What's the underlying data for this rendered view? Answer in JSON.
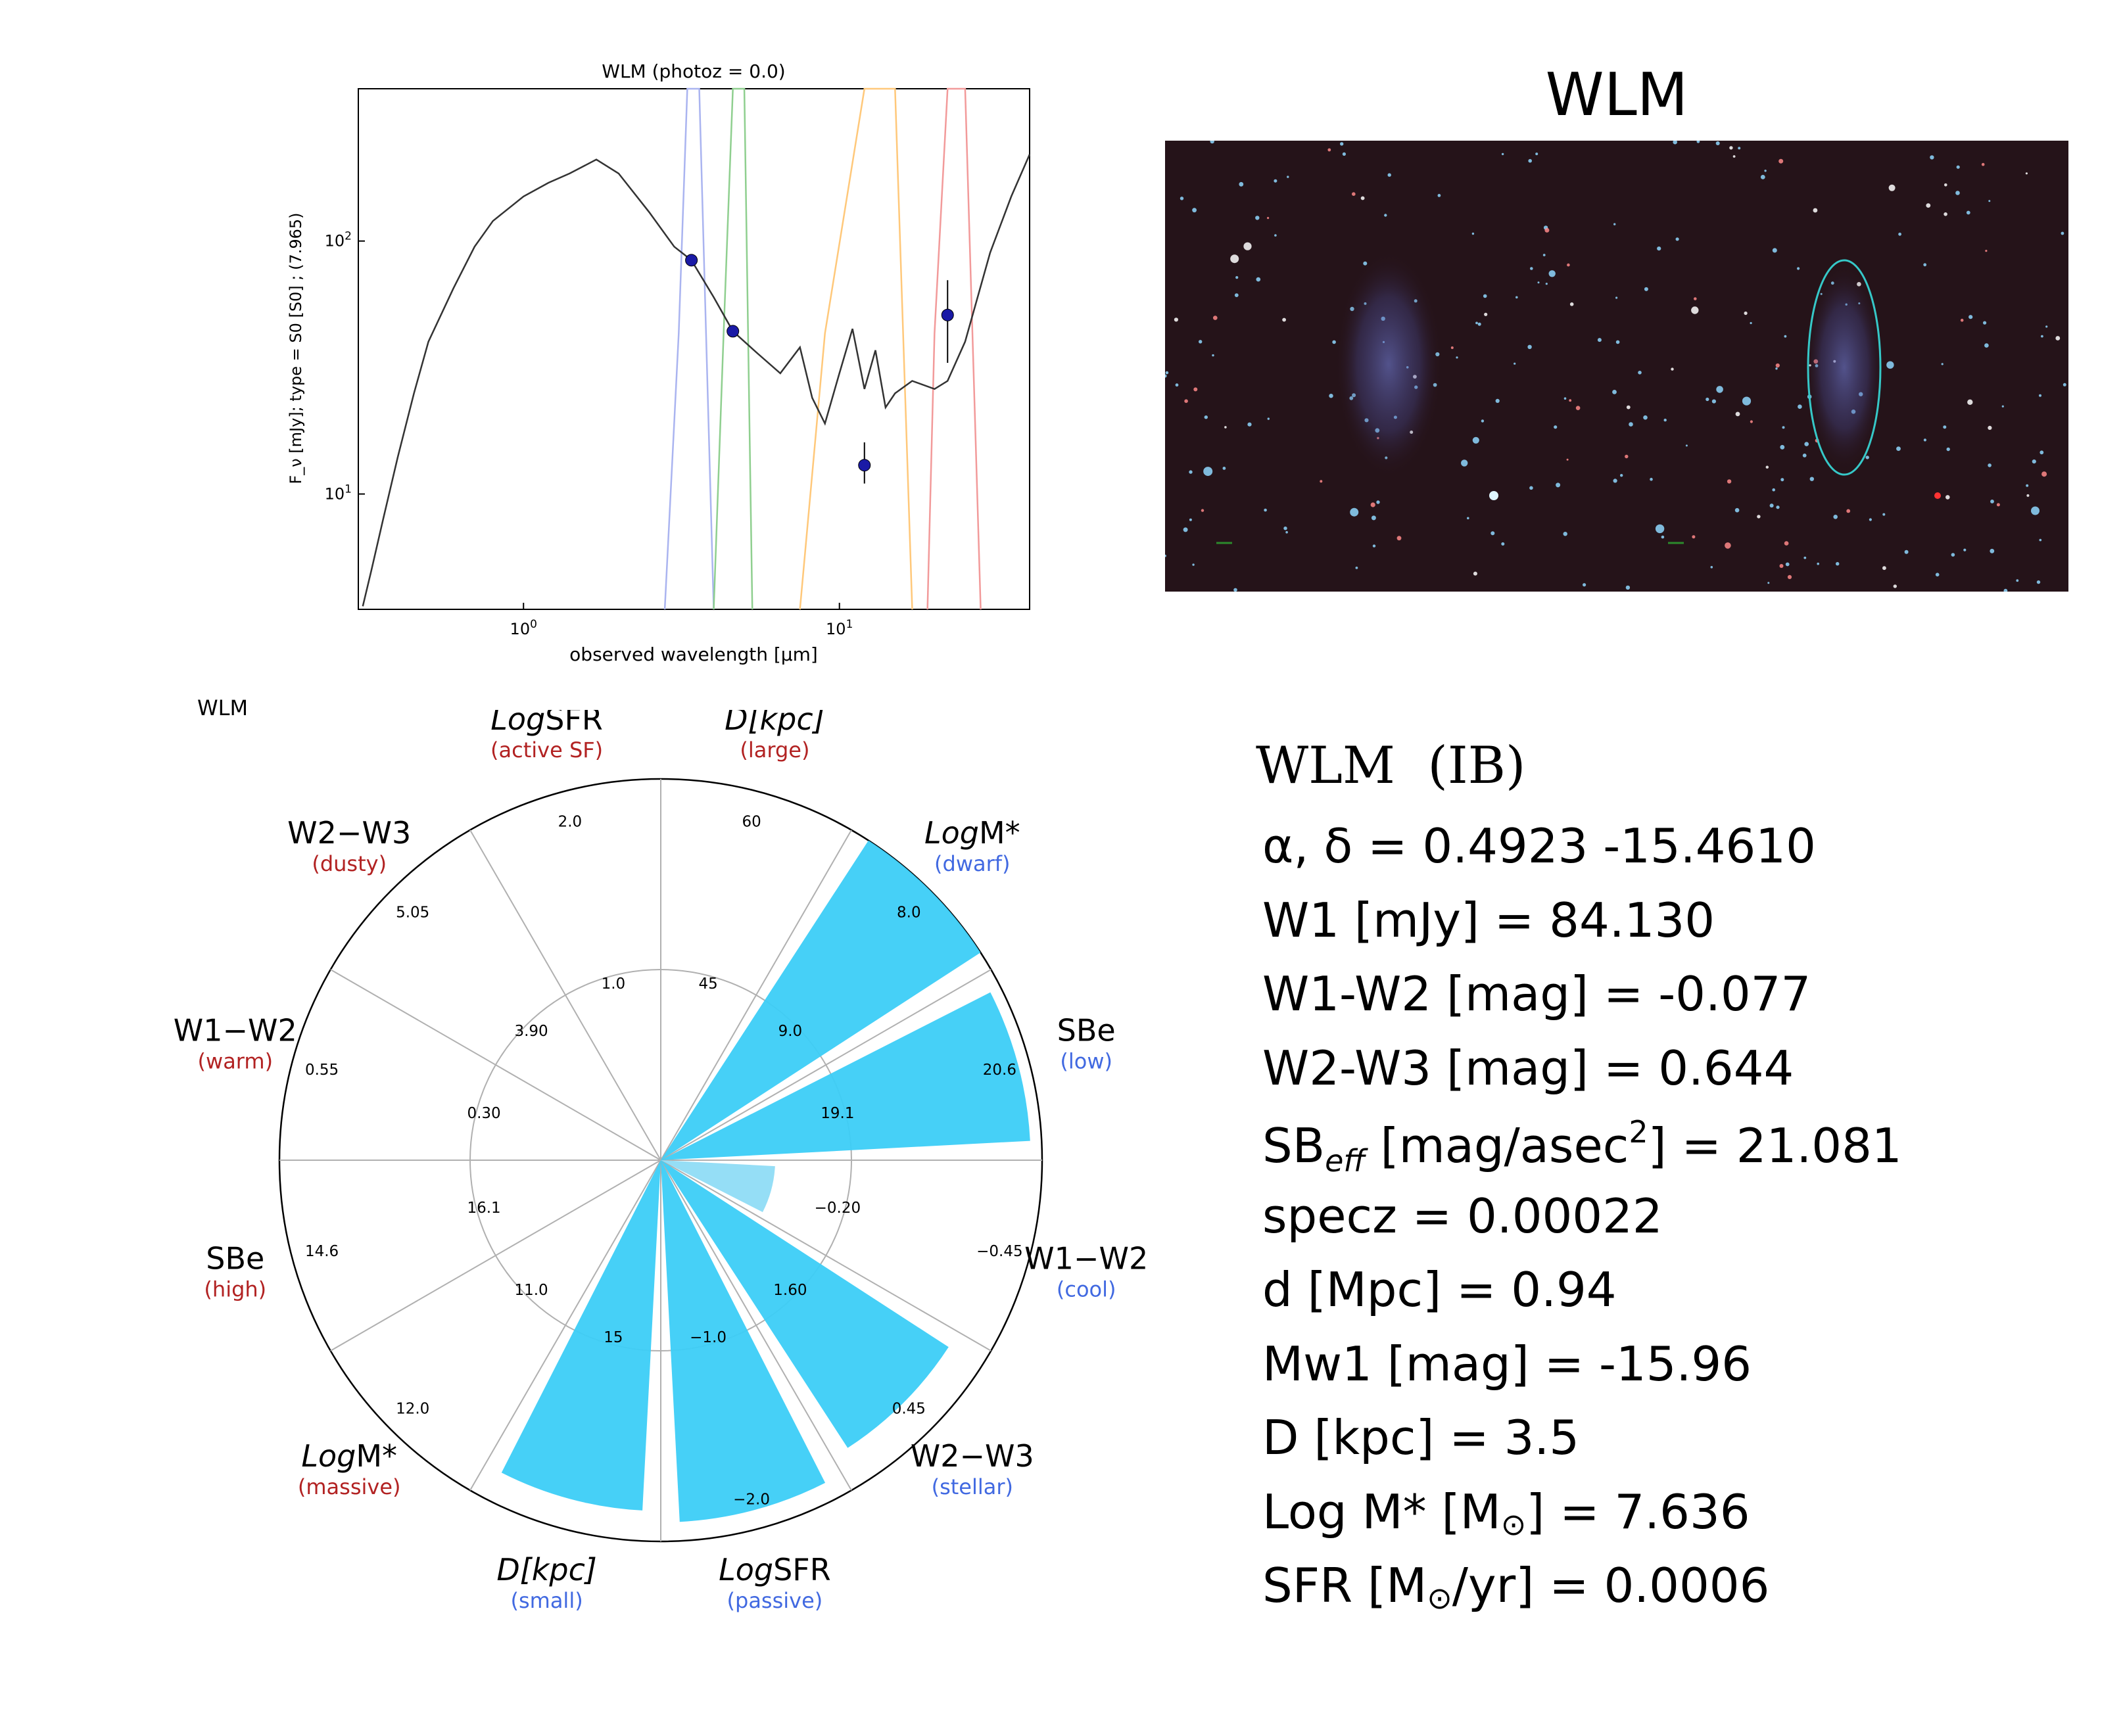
{
  "sed_chart": {
    "title": "WLM (photoz = 0.0)",
    "ylabel": "F_ν [mJy];  type = S0 [S0] ; (7.965)",
    "xlabel": "observed wavelength [μm]",
    "xscale": "log",
    "yscale": "log",
    "xlim": [
      0.3,
      40
    ],
    "ylim": [
      3.5,
      400
    ],
    "xticks": [
      {
        "v": 1,
        "label": "10^0"
      },
      {
        "v": 10,
        "label": "10^1"
      }
    ],
    "yticks": [
      {
        "v": 10,
        "label": "10^1"
      },
      {
        "v": 100,
        "label": "10^2"
      }
    ]
  },
  "image_panel": {
    "title": "WLM"
  },
  "radar": {
    "label": "WLM",
    "axes": [
      {
        "name": "W1−W2",
        "sub": "(warm)",
        "subcolor": "#b22222"
      },
      {
        "name": "W2−W3",
        "sub": "(dusty)",
        "subcolor": "#b22222"
      },
      {
        "name": "LogSFR",
        "sub": "(active SF)",
        "subcolor": "#b22222"
      },
      {
        "name": "D[kpc]",
        "sub": "(large)",
        "subcolor": "#b22222"
      },
      {
        "name": "LogM*",
        "sub": "(dwarf)",
        "subcolor": "#4169e1"
      },
      {
        "name": "SBe",
        "sub": "(low)",
        "subcolor": "#4169e1"
      },
      {
        "name": "W1−W2",
        "sub": "(cool)",
        "subcolor": "#4169e1"
      },
      {
        "name": "W2−W3",
        "sub": "(stellar)",
        "subcolor": "#4169e1"
      },
      {
        "name": "LogSFR",
        "sub": "(passive)",
        "subcolor": "#4169e1"
      },
      {
        "name": "D[kpc]",
        "sub": "(small)",
        "subcolor": "#4169e1"
      },
      {
        "name": "LogM*",
        "sub": "(massive)",
        "subcolor": "#b22222"
      },
      {
        "name": "SBe",
        "sub": "(high)",
        "subcolor": "#b22222"
      }
    ],
    "tick_labels": [
      {
        "text": "0.55"
      },
      {
        "text": "5.05"
      },
      {
        "text": "2.0"
      },
      {
        "text": "60"
      },
      {
        "text": "0.30"
      },
      {
        "text": "3.90"
      },
      {
        "text": "1.0"
      },
      {
        "text": "45"
      },
      {
        "text": "16.1"
      },
      {
        "text": "11.0"
      },
      {
        "text": "12.0"
      },
      {
        "text": "14.6"
      },
      {
        "text": "9.0"
      },
      {
        "text": "8.0"
      },
      {
        "text": "19.1"
      },
      {
        "text": "20.6"
      },
      {
        "text": "−0.20"
      },
      {
        "text": "−0.45"
      },
      {
        "text": "1.60"
      },
      {
        "text": "0.45"
      },
      {
        "text": "−1.0"
      },
      {
        "text": "−2.0"
      },
      {
        "text": "15"
      }
    ]
  },
  "chart_data": [
    {
      "type": "line",
      "title": "WLM (photoz = 0.0)",
      "xlabel": "observed wavelength [μm]",
      "ylabel": "F_ν [mJy];  type = S0 [S0] ; (7.965)",
      "xlim": [
        0.3,
        40
      ],
      "ylim": [
        3.5,
        400
      ],
      "series": [
        {
          "values": [
            [
              0.31,
              3.6
            ],
            [
              0.33,
              5
            ],
            [
              0.36,
              8
            ],
            [
              0.4,
              14
            ],
            [
              0.45,
              25
            ],
            [
              0.5,
              40
            ],
            [
              0.6,
              65
            ],
            [
              0.7,
              95
            ],
            [
              0.8,
              120
            ],
            [
              1.0,
              150
            ],
            [
              1.2,
              170
            ],
            [
              1.4,
              185
            ],
            [
              1.7,
              210
            ],
            [
              2.0,
              185
            ],
            [
              2.5,
              130
            ],
            [
              3.0,
              95
            ],
            [
              3.4,
              84
            ],
            [
              4.0,
              60
            ],
            [
              4.6,
              44
            ],
            [
              5.5,
              36
            ],
            [
              6.5,
              30
            ],
            [
              7.5,
              38
            ],
            [
              8.2,
              24
            ],
            [
              9,
              19
            ],
            [
              10,
              30
            ],
            [
              11,
              45
            ],
            [
              12,
              26
            ],
            [
              13,
              37
            ],
            [
              14,
              22
            ],
            [
              15,
              25
            ],
            [
              17,
              28
            ],
            [
              20,
              26
            ],
            [
              22,
              28
            ],
            [
              25,
              40
            ],
            [
              30,
              90
            ],
            [
              35,
              150
            ],
            [
              40,
              220
            ]
          ]
        }
      ],
      "points": [
        {
          "x": 3.4,
          "y": 84,
          "yerr_lo": 80,
          "yerr_hi": 88
        },
        {
          "x": 4.6,
          "y": 44,
          "yerr_lo": 42,
          "yerr_hi": 46
        },
        {
          "x": 12,
          "y": 13,
          "yerr_lo": 11,
          "yerr_hi": 16
        },
        {
          "x": 22,
          "y": 51,
          "yerr_lo": 33,
          "yerr_hi": 70
        }
      ],
      "filter_curves": [
        {
          "color": "#aab4f0",
          "band": "W1",
          "x": [
            2.8,
            3.1,
            3.3,
            3.6,
            3.9,
            4.0
          ]
        },
        {
          "color": "#8fcf8f",
          "band": "W2",
          "x": [
            4.0,
            4.3,
            4.6,
            5.0,
            5.3
          ]
        },
        {
          "color": "#ffc87a",
          "band": "W3",
          "x": [
            7.5,
            9,
            12,
            15,
            17
          ]
        },
        {
          "color": "#f29a9a",
          "band": "W4",
          "x": [
            19,
            20,
            22,
            25,
            28
          ]
        }
      ]
    },
    {
      "type": "bar",
      "polar": true,
      "categories": [
        "W1−W2 (warm)",
        "W2−W3 (dusty)",
        "LogSFR (active SF)",
        "D[kpc] (large)",
        "LogM* (dwarf)",
        "SBe (low)",
        "W1−W2 (cool)",
        "W2−W3 (stellar)",
        "LogSFR (passive)",
        "D[kpc] (small)",
        "LogM* (massive)",
        "SBe (high)"
      ],
      "values": [
        0,
        0,
        0,
        0,
        1.0,
        0.97,
        0.3,
        0.9,
        0.95,
        0.92,
        0,
        0
      ],
      "rlim": [
        0,
        1
      ],
      "grid_ring": 0.5
    }
  ],
  "info": {
    "title": "WLM  (IB)",
    "lines": [
      {
        "pre": "α, δ = 0.4923 -15.4610"
      },
      {
        "pre": "W1 [mJy] = 84.130"
      },
      {
        "pre": "W1-W2 [mag] = -0.077"
      },
      {
        "pre": "W2-W3 [mag] = 0.644"
      },
      {
        "pre": "SB",
        "sub": "eff",
        "mid": " [mag/asec",
        "sup": "2",
        "post": "] = 21.081"
      },
      {
        "pre": "specz = 0.00022"
      },
      {
        "pre": "d [Mpc] = 0.94"
      },
      {
        "pre": "Mw1 [mag] = -15.96"
      },
      {
        "pre": "D [kpc] = 3.5"
      },
      {
        "pre": "Log M* [M",
        "sym": "⊙",
        "post": "] = 7.636"
      },
      {
        "pre": "SFR [M",
        "sym": "⊙",
        "post": "/yr] = 0.0006"
      }
    ]
  }
}
